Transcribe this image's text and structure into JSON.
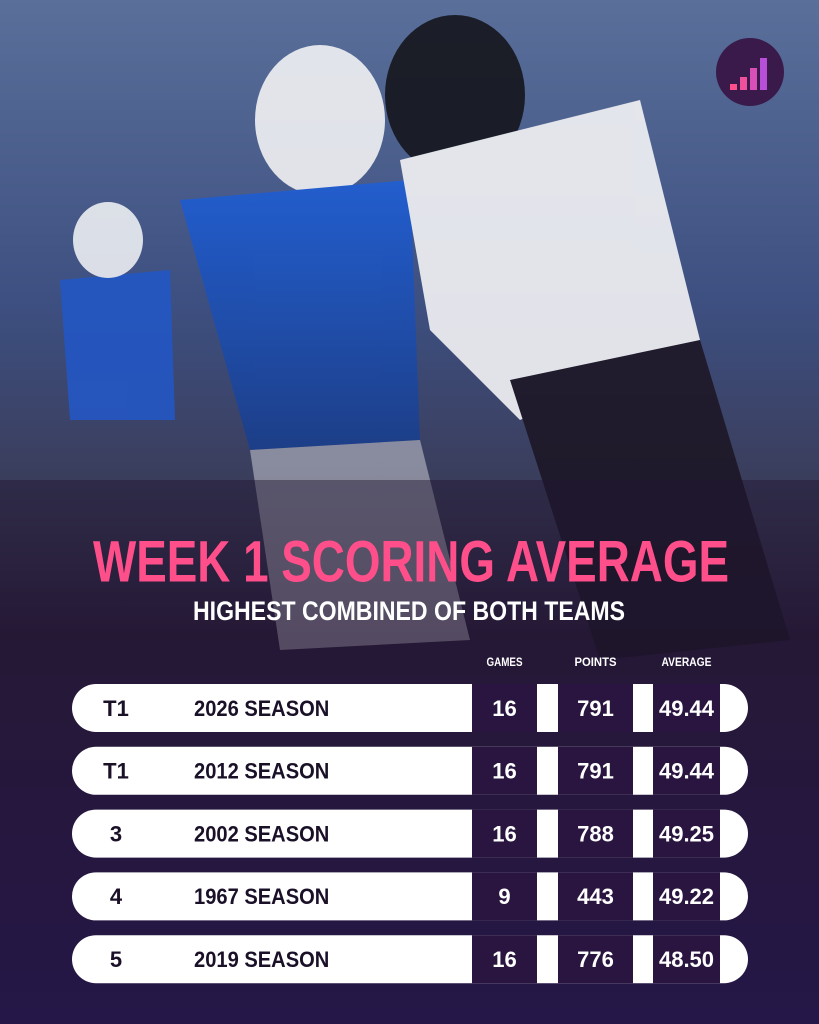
{
  "header": {
    "title": "WEEK 1 SCORING AVERAGE",
    "subtitle": "HIGHEST COMBINED OF BOTH TEAMS"
  },
  "table": {
    "columns": [
      "GAMES",
      "POINTS",
      "AVERAGE"
    ],
    "rows": [
      [
        "T1",
        "2026 SEASON",
        "16",
        "791",
        "49.44"
      ],
      [
        "T1",
        "2012 SEASON",
        "16",
        "791",
        "49.44"
      ],
      [
        "3",
        "2002 SEASON",
        "16",
        "788",
        "49.25"
      ],
      [
        "4",
        "1967 SEASON",
        "9",
        "443",
        "49.22"
      ],
      [
        "5",
        "2019 SEASON",
        "16",
        "776",
        "48.50"
      ]
    ]
  }
}
